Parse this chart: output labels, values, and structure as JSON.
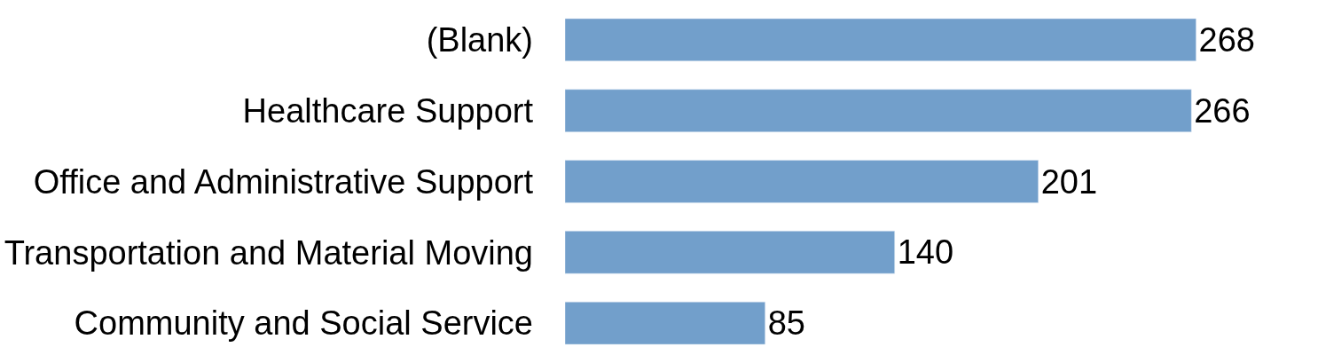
{
  "chart_data": {
    "type": "bar",
    "orientation": "horizontal",
    "categories": [
      "(Blank)",
      "Healthcare Support",
      "Office and Administrative Support",
      "Transportation and Material Moving",
      "Community and Social Service"
    ],
    "values": [
      268,
      266,
      201,
      140,
      85
    ],
    "color": "#729fcb",
    "data_labels": true,
    "legend": false
  }
}
